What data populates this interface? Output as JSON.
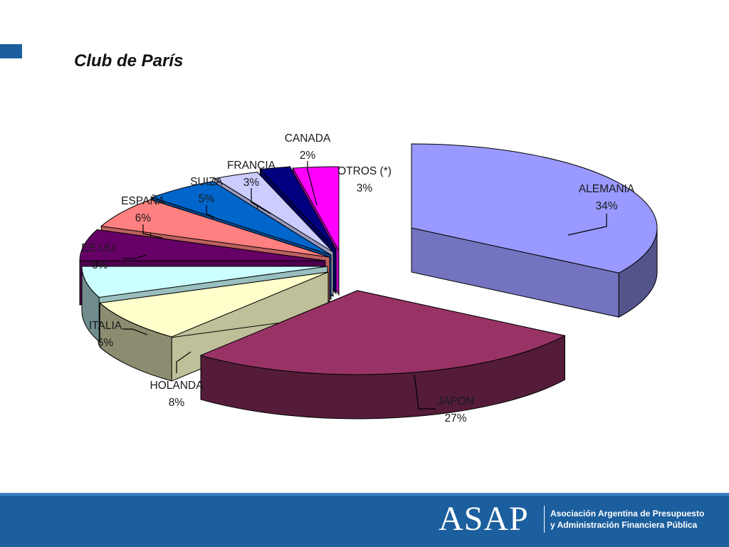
{
  "slide": {
    "title": "Club de París"
  },
  "chart_data": {
    "type": "pie",
    "style": "3d-exploded",
    "title": "",
    "slices": [
      {
        "label": "ALEMANIA",
        "pct_text": "34%",
        "value": 34,
        "color": "#9999ff"
      },
      {
        "label": "JAPON",
        "pct_text": "27%",
        "value": 27,
        "color": "#993366"
      },
      {
        "label": "HOLANDA",
        "pct_text": "8%",
        "value": 8,
        "color": "#ffffcc"
      },
      {
        "label": "ITALIA",
        "pct_text": "6%",
        "value": 6,
        "color": "#ccffff"
      },
      {
        "label": "EE.UU.",
        "pct_text": "6%",
        "value": 6,
        "color": "#660066"
      },
      {
        "label": "ESPAÑA",
        "pct_text": "6%",
        "value": 6,
        "color": "#ff8080"
      },
      {
        "label": "SUIZA",
        "pct_text": "5%",
        "value": 5,
        "color": "#0066cc"
      },
      {
        "label": "FRANCIA",
        "pct_text": "3%",
        "value": 3,
        "color": "#ccccff"
      },
      {
        "label": "CANADA",
        "pct_text": "2%",
        "value": 2,
        "color": "#000080"
      },
      {
        "label": "OTROS (*)",
        "pct_text": "3%",
        "value": 3,
        "color": "#ff00ff"
      }
    ]
  },
  "footer": {
    "logo_text": "ASAP",
    "org_line1": "Asociación Argentina de Presupuesto",
    "org_line2": "y Administración Financiera Pública"
  },
  "colors": {
    "accent": "#1c5f9e"
  }
}
